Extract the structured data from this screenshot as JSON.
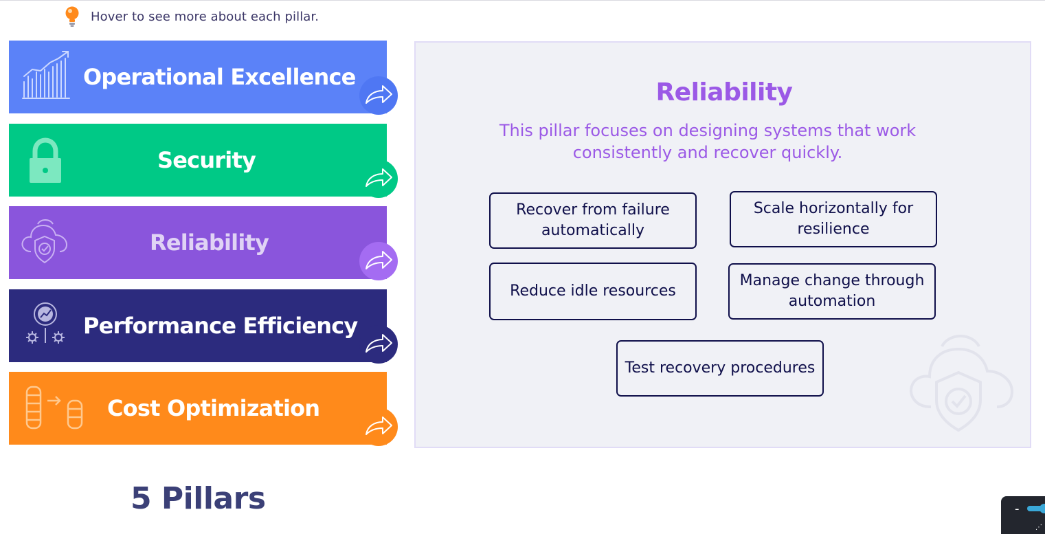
{
  "hint": {
    "icon": "lightbulb-icon",
    "text": "Hover to see more about each pillar."
  },
  "pillars": [
    {
      "label": "Operational Excellence",
      "icon": "growth-chart-icon",
      "color": "#5b82f8",
      "badge_color": "#4f77f3"
    },
    {
      "label": "Security",
      "icon": "lock-icon",
      "color": "#00c986",
      "badge_color": "#00c986"
    },
    {
      "label": "Reliability",
      "icon": "cloud-shield-icon",
      "color": "#8a55dc",
      "badge_color": "#a46cf2",
      "active": true
    },
    {
      "label": "Performance Efficiency",
      "icon": "gauge-gears-icon",
      "color": "#2c2b7e",
      "badge_color": "#2c2b7e"
    },
    {
      "label": "Cost Optimization",
      "icon": "coins-transfer-icon",
      "color": "#ff8a1b",
      "badge_color": "#ff8a1b"
    }
  ],
  "detail": {
    "title": "Reliability",
    "description": "This pillar focuses on designing systems that work consistently and recover quickly.",
    "practices": [
      "Recover from failure automatically",
      "Scale horizontally for resilience",
      "Reduce idle resources",
      "Manage change through automation",
      "Test recovery procedures"
    ],
    "watermark_icon": "cloud-shield-icon"
  },
  "footer": {
    "title": "5 Pillars"
  },
  "widget": {
    "minus": "-",
    "icon": "toggle-icon"
  },
  "colors": {
    "accent_purple": "#9b59e6",
    "navy": "#0f0f4a",
    "panel_bg": "#f0f1f6"
  }
}
